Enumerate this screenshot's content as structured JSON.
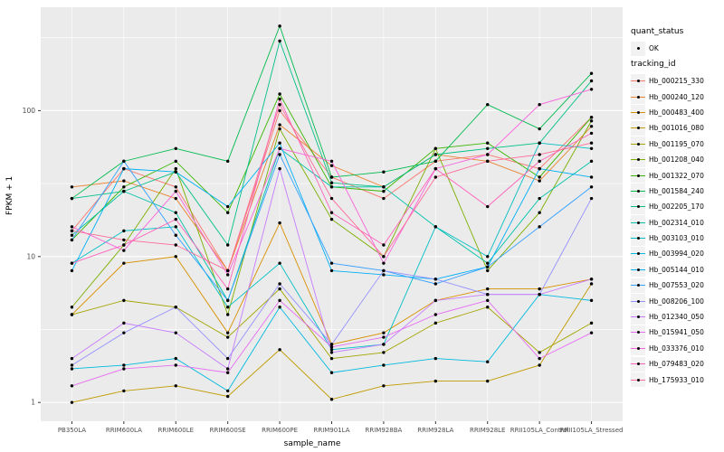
{
  "figure": {
    "x_title": "sample_name",
    "y_title": "FPKM + 1"
  },
  "legend": {
    "quant_status_title": "quant_status",
    "quant_status_items": [
      "OK"
    ],
    "tracking_title": "tracking_id"
  },
  "chart_data": {
    "type": "line",
    "title": "",
    "xlabel": "sample_name",
    "ylabel": "FPKM + 1",
    "y_scale": "log10",
    "y_ticks": [
      1,
      10,
      100
    ],
    "grid": true,
    "legend_position": "right",
    "plot_background": "#EBEBEB",
    "point_color": "#000000",
    "categories": [
      "PB350LA",
      "RRIM600LA",
      "RRIM600LE",
      "RRIM600SE",
      "RRIM600PE",
      "RRIM901LA",
      "RRIM928BA",
      "RRIM928LA",
      "RRIM928LE",
      "RRII105LA_Control",
      "RRII105LA_Stressed"
    ],
    "series": [
      {
        "name": "Hb_000215_330",
        "color": "#F8766D",
        "values": [
          15,
          40,
          30,
          8,
          100,
          35,
          25,
          45,
          50,
          40,
          90
        ]
      },
      {
        "name": "Hb_000240_120",
        "color": "#EA8331",
        "values": [
          30,
          33,
          25,
          8,
          80,
          42,
          30,
          50,
          45,
          33,
          78
        ]
      },
      {
        "name": "Hb_000483_400",
        "color": "#D89000",
        "values": [
          4,
          9,
          10,
          3,
          17,
          2.5,
          3,
          5,
          6,
          6,
          7
        ]
      },
      {
        "name": "Hb_001016_080",
        "color": "#C09B00",
        "values": [
          1.0,
          1.2,
          1.3,
          1.1,
          2.3,
          1.05,
          1.3,
          1.4,
          1.4,
          1.8,
          6.5
        ]
      },
      {
        "name": "Hb_001195_070",
        "color": "#A3A500",
        "values": [
          4,
          5,
          4.5,
          2.8,
          6,
          2,
          2.2,
          3.5,
          4.5,
          2.2,
          3.5
        ]
      },
      {
        "name": "Hb_001208_040",
        "color": "#7CAE00",
        "values": [
          4.5,
          12,
          40,
          4,
          75,
          18,
          10,
          55,
          8,
          20,
          85
        ]
      },
      {
        "name": "Hb_001322_070",
        "color": "#39B600",
        "values": [
          13,
          30,
          45,
          20,
          130,
          30,
          28,
          55,
          60,
          35,
          90
        ]
      },
      {
        "name": "Hb_001584_240",
        "color": "#00BB4E",
        "values": [
          25,
          45,
          55,
          45,
          380,
          35,
          38,
          45,
          110,
          75,
          180
        ]
      },
      {
        "name": "Hb_002205_170",
        "color": "#00C087",
        "values": [
          25,
          28,
          38,
          12,
          300,
          32,
          30,
          50,
          55,
          60,
          160
        ]
      },
      {
        "name": "Hb_002314_010",
        "color": "#00C1A9",
        "values": [
          14,
          28,
          20,
          5,
          55,
          30,
          30,
          16,
          9,
          25,
          45
        ]
      },
      {
        "name": "Hb_003103_010",
        "color": "#00BFC4",
        "values": [
          9,
          15,
          16,
          4.5,
          9,
          2.3,
          2.5,
          16,
          10,
          60,
          55
        ]
      },
      {
        "name": "Hb_003994_020",
        "color": "#00BAE0",
        "values": [
          1.7,
          1.8,
          2.0,
          1.2,
          4.5,
          1.6,
          1.8,
          2.0,
          1.9,
          5.5,
          5.0
        ]
      },
      {
        "name": "Hb_005144_010",
        "color": "#00B0F6",
        "values": [
          8,
          40,
          38,
          22,
          60,
          8,
          7.5,
          7,
          8.5,
          40,
          35
        ]
      },
      {
        "name": "Hb_007553_020",
        "color": "#35A2FF",
        "values": [
          13,
          45,
          14,
          5,
          50,
          9,
          8,
          6.5,
          8.5,
          16,
          30
        ]
      },
      {
        "name": "Hb_008206_100",
        "color": "#9590FF",
        "values": [
          1.8,
          3,
          4.5,
          2,
          6.5,
          2.5,
          8,
          7,
          5.5,
          5.5,
          25
        ]
      },
      {
        "name": "Hb_012340_050",
        "color": "#C77CFF",
        "values": [
          2,
          3.5,
          3,
          1.7,
          40,
          2.2,
          2.5,
          5,
          5.5,
          5.5,
          7
        ]
      },
      {
        "name": "Hb_015941_050",
        "color": "#E76BF3",
        "values": [
          1.3,
          1.7,
          1.8,
          1.6,
          5,
          2.4,
          2.8,
          4,
          5,
          2,
          3
        ]
      },
      {
        "name": "Hb_033376_010",
        "color": "#FA62DB",
        "values": [
          16,
          11,
          28,
          7.5,
          55,
          45,
          9,
          40,
          50,
          110,
          140
        ]
      },
      {
        "name": "Hb_079483_020",
        "color": "#FF62BC",
        "values": [
          9,
          12,
          18,
          6,
          120,
          20,
          12,
          40,
          22,
          45,
          70
        ]
      },
      {
        "name": "Hb_175933_010",
        "color": "#FF6A98",
        "values": [
          15,
          13,
          12,
          8,
          110,
          25,
          10,
          35,
          45,
          50,
          60
        ]
      }
    ]
  }
}
